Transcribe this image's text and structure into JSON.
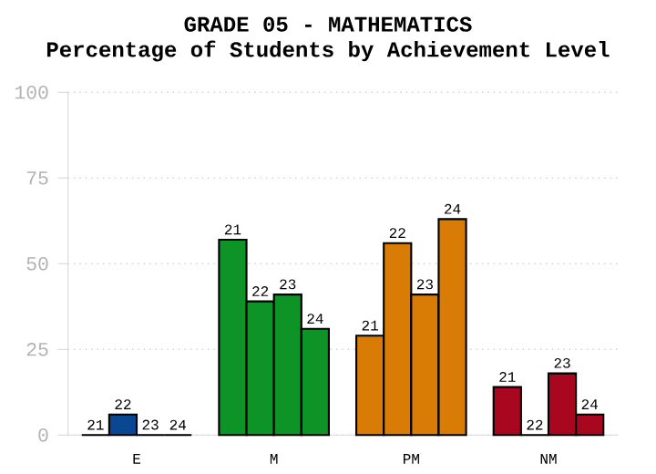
{
  "chart_data": {
    "type": "bar",
    "title": "GRADE 05 - MATHEMATICS",
    "subtitle": "Percentage of Students by Achievement Level",
    "categories": [
      "E",
      "M",
      "PM",
      "NM"
    ],
    "series": [
      {
        "name": "21",
        "colors": [
          "#0b4693",
          "#0e9426",
          "#d97c06",
          "#a8071f"
        ],
        "values": [
          0,
          57,
          29,
          14
        ]
      },
      {
        "name": "22",
        "colors": [
          "#0b4693",
          "#0e9426",
          "#d97c06",
          "#a8071f"
        ],
        "values": [
          6,
          39,
          56,
          0
        ]
      },
      {
        "name": "23",
        "colors": [
          "#0b4693",
          "#0e9426",
          "#d97c06",
          "#a8071f"
        ],
        "values": [
          0,
          41,
          41,
          18
        ]
      },
      {
        "name": "24",
        "colors": [
          "#0b4693",
          "#0e9426",
          "#d97c06",
          "#a8071f"
        ],
        "values": [
          0,
          31,
          63,
          6
        ]
      }
    ],
    "ylim": [
      0,
      100
    ],
    "yticks": [
      0,
      25,
      50,
      75,
      100
    ],
    "grid": "y"
  }
}
